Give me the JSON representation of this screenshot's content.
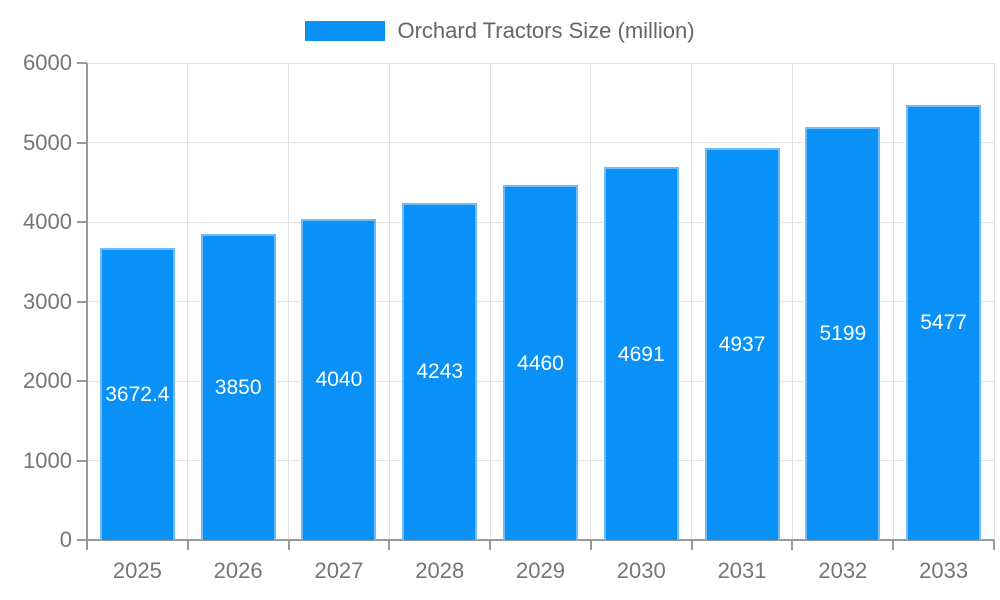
{
  "chart_data": {
    "type": "bar",
    "title": "",
    "legend_position": "top",
    "categories": [
      "2025",
      "2026",
      "2027",
      "2028",
      "2029",
      "2030",
      "2031",
      "2032",
      "2033"
    ],
    "series": [
      {
        "name": "Orchard Tractors Size (million)",
        "values": [
          3672.4,
          3850,
          4040,
          4243,
          4460,
          4691,
          4937,
          5199,
          5477
        ]
      }
    ],
    "value_labels": [
      "3672.4",
      "3850",
      "4040",
      "4243",
      "4460",
      "4691",
      "4937",
      "5199",
      "5477"
    ],
    "value_label_position": "inside-center",
    "xlabel": "",
    "ylabel": "",
    "ylim": [
      0,
      6000
    ],
    "yticks": [
      0,
      1000,
      2000,
      3000,
      4000,
      5000,
      6000
    ],
    "grid": true,
    "colors": {
      "bar_fill": "#0991f8",
      "bar_border": "#6ebbfa",
      "grid_line": "#e3e3e3",
      "axis_line": "#999999",
      "tick_label": "#757575",
      "legend_text": "#666666",
      "value_label": "#ffffff",
      "background": "#ffffff"
    }
  }
}
